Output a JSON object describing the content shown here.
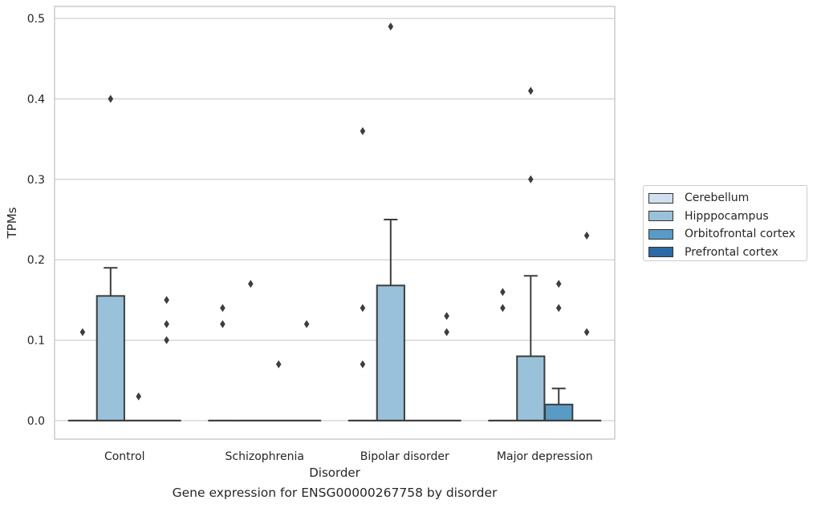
{
  "caption": "Gene expression for ENSG00000267758 by disorder",
  "chart_data": {
    "type": "box",
    "xlabel": "Disorder",
    "ylabel": "TPMs",
    "ylim": [
      -0.023,
      0.515
    ],
    "yticks": [
      0.0,
      0.1,
      0.2,
      0.3,
      0.4,
      0.5
    ],
    "ytick_labels": [
      "0.0",
      "0.1",
      "0.2",
      "0.3",
      "0.4",
      "0.5"
    ],
    "grid": "horizontal",
    "legend_position": "right",
    "categories": [
      "Control",
      "Schizophrenia",
      "Bipolar disorder",
      "Major depression"
    ],
    "series": [
      {
        "name": "Cerebellum",
        "color": "#d0e0ef",
        "boxes": [
          {
            "q1": 0,
            "median": 0,
            "q3": 0,
            "whisker_low": 0,
            "whisker_high": 0,
            "outliers": [
              0.11
            ]
          },
          {
            "q1": 0,
            "median": 0,
            "q3": 0,
            "whisker_low": 0,
            "whisker_high": 0,
            "outliers": [
              0.12,
              0.14
            ]
          },
          {
            "q1": 0,
            "median": 0,
            "q3": 0,
            "whisker_low": 0,
            "whisker_high": 0,
            "outliers": [
              0.07,
              0.14,
              0.36
            ]
          },
          {
            "q1": 0,
            "median": 0,
            "q3": 0,
            "whisker_low": 0,
            "whisker_high": 0,
            "outliers": [
              0.14,
              0.16
            ]
          }
        ]
      },
      {
        "name": "Hipppocampus",
        "color": "#9ac1da",
        "boxes": [
          {
            "q1": 0,
            "median": 0,
            "q3": 0.155,
            "whisker_low": 0,
            "whisker_high": 0.19,
            "outliers": [
              0.4
            ]
          },
          {
            "q1": 0,
            "median": 0,
            "q3": 0,
            "whisker_low": 0,
            "whisker_high": 0,
            "outliers": [
              0.17
            ]
          },
          {
            "q1": 0,
            "median": 0,
            "q3": 0.168,
            "whisker_low": 0,
            "whisker_high": 0.25,
            "outliers": [
              0.49
            ]
          },
          {
            "q1": 0,
            "median": 0,
            "q3": 0.08,
            "whisker_low": 0,
            "whisker_high": 0.18,
            "outliers": [
              0.3,
              0.41
            ]
          }
        ]
      },
      {
        "name": "Orbitofrontal cortex",
        "color": "#5a9bc6",
        "boxes": [
          {
            "q1": 0,
            "median": 0,
            "q3": 0,
            "whisker_low": 0,
            "whisker_high": 0,
            "outliers": [
              0.03
            ]
          },
          {
            "q1": 0,
            "median": 0,
            "q3": 0,
            "whisker_low": 0,
            "whisker_high": 0,
            "outliers": [
              0.07
            ]
          },
          {
            "q1": 0,
            "median": 0,
            "q3": 0,
            "whisker_low": 0,
            "whisker_high": 0,
            "outliers": []
          },
          {
            "q1": 0,
            "median": 0,
            "q3": 0.02,
            "whisker_low": 0,
            "whisker_high": 0.04,
            "outliers": [
              0.14,
              0.17
            ]
          }
        ]
      },
      {
        "name": "Prefrontal cortex",
        "color": "#2d6aa3",
        "boxes": [
          {
            "q1": 0,
            "median": 0,
            "q3": 0,
            "whisker_low": 0,
            "whisker_high": 0,
            "outliers": [
              0.1,
              0.12,
              0.15
            ]
          },
          {
            "q1": 0,
            "median": 0,
            "q3": 0,
            "whisker_low": 0,
            "whisker_high": 0,
            "outliers": [
              0.12
            ]
          },
          {
            "q1": 0,
            "median": 0,
            "q3": 0,
            "whisker_low": 0,
            "whisker_high": 0,
            "outliers": [
              0.11,
              0.13
            ]
          },
          {
            "q1": 0,
            "median": 0,
            "q3": 0,
            "whisker_low": 0,
            "whisker_high": 0,
            "outliers": [
              0.11,
              0.23
            ]
          }
        ]
      }
    ]
  }
}
